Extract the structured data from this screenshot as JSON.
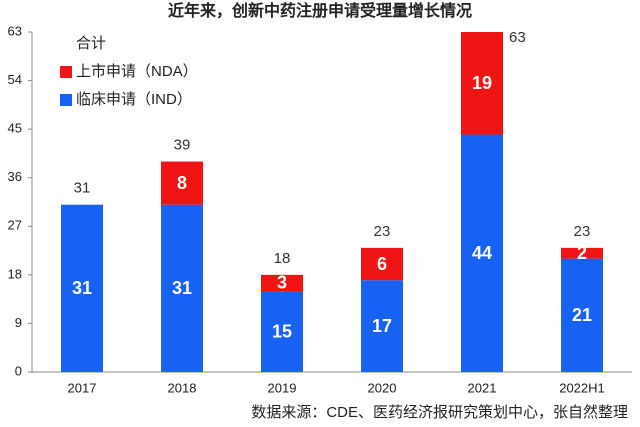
{
  "chart_data": {
    "type": "stacked_bar",
    "title": "近年来，创新中药注册申请受理量增长情况",
    "categories": [
      "2017",
      "2018",
      "2019",
      "2020",
      "2021",
      "2022H1"
    ],
    "series": [
      {
        "name": "临床申请（IND）",
        "color": "#1762f2",
        "values": [
          31,
          31,
          15,
          17,
          44,
          21
        ]
      },
      {
        "name": "上市申请（NDA）",
        "color": "#f01414",
        "values": [
          null,
          8,
          3,
          6,
          19,
          2
        ]
      }
    ],
    "totals": {
      "name": "合计",
      "values": [
        31,
        39,
        18,
        23,
        63,
        23
      ]
    },
    "ylim": [
      0,
      63
    ],
    "yticks": [
      0,
      9,
      18,
      27,
      36,
      45,
      54,
      63
    ],
    "grid": false,
    "source": "数据来源：CDE、医药经济报研究策划中心，张自然整理"
  }
}
